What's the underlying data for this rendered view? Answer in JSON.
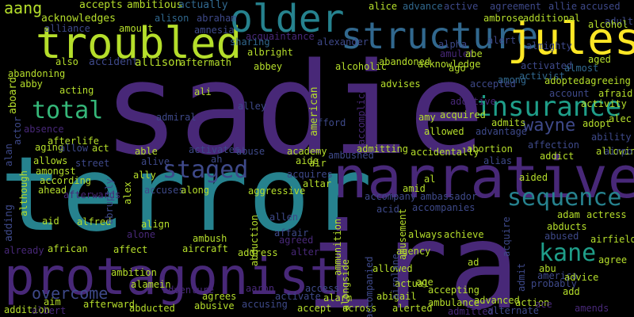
{
  "word_cloud": {
    "background": "#000000",
    "palette": [
      "#440154",
      "#482878",
      "#3e4989",
      "#31688e",
      "#26828e",
      "#1f9e89",
      "#35b779",
      "#6ece58",
      "#b5de2b",
      "#fde725"
    ],
    "words": [
      {
        "text": "sadie",
        "color": "#482878"
      },
      {
        "text": "terror",
        "color": "#26828e"
      },
      {
        "text": "ira",
        "color": "#482878"
      },
      {
        "text": "narrative",
        "color": "#482878"
      },
      {
        "text": "protagonist",
        "color": "#482878"
      },
      {
        "text": "troubled",
        "color": "#b5de2b"
      },
      {
        "text": "older",
        "color": "#26828e"
      },
      {
        "text": "structure",
        "color": "#31688e"
      },
      {
        "text": "jules",
        "color": "#fde725"
      },
      {
        "text": "insurance",
        "color": "#1f9e89"
      },
      {
        "text": "total",
        "color": "#35b779"
      },
      {
        "text": "staged",
        "color": "#3e4989"
      },
      {
        "text": "sequence",
        "color": "#26828e"
      },
      {
        "text": "kane",
        "color": "#1f9e89"
      },
      {
        "text": "wayne",
        "color": "#3e4989"
      },
      {
        "text": "overcome",
        "color": "#3e4989"
      },
      {
        "text": "aang",
        "color": "#b5de2b"
      },
      {
        "text": "accepts",
        "color": "#b5de2b"
      },
      {
        "text": "ambitious",
        "color": "#b5de2b"
      },
      {
        "text": "actually",
        "color": "#31688e"
      },
      {
        "text": "alice",
        "color": "#b5de2b"
      },
      {
        "text": "advance",
        "color": "#31688e"
      },
      {
        "text": "active",
        "color": "#3e4989"
      },
      {
        "text": "agreement",
        "color": "#3e4989"
      },
      {
        "text": "allie",
        "color": "#3e4989"
      },
      {
        "text": "accused",
        "color": "#3e4989"
      },
      {
        "text": "adult",
        "color": "#3e4989"
      },
      {
        "text": "acknowledges",
        "color": "#b5de2b"
      },
      {
        "text": "alison",
        "color": "#31688e"
      },
      {
        "text": "abraham",
        "color": "#3e4989"
      },
      {
        "text": "ambrose",
        "color": "#b5de2b"
      },
      {
        "text": "additional",
        "color": "#b5de2b"
      },
      {
        "text": "alcohol",
        "color": "#b5de2b"
      },
      {
        "text": "alliance",
        "color": "#3e4989"
      },
      {
        "text": "amount",
        "color": "#b5de2b"
      },
      {
        "text": "amnesia",
        "color": "#3e4989"
      },
      {
        "text": "acquaintance",
        "color": "#482878"
      },
      {
        "text": "alexander",
        "color": "#3e4989"
      },
      {
        "text": "alpha",
        "color": "#3e4989"
      },
      {
        "text": "alert",
        "color": "#3e4989"
      },
      {
        "text": "almighty",
        "color": "#3e4989"
      },
      {
        "text": "sharing",
        "color": "#31688e"
      },
      {
        "text": "albright",
        "color": "#b5de2b"
      },
      {
        "text": "amulet",
        "color": "#482878"
      },
      {
        "text": "abe",
        "color": "#b5de2b"
      },
      {
        "text": "aged",
        "color": "#b5de2b"
      },
      {
        "text": "also",
        "color": "#b5de2b"
      },
      {
        "text": "accident",
        "color": "#3e4989"
      },
      {
        "text": "allison",
        "color": "#b5de2b"
      },
      {
        "text": "aftermath",
        "color": "#b5de2b"
      },
      {
        "text": "abandoned",
        "color": "#b5de2b"
      },
      {
        "text": "acknowledge",
        "color": "#b5de2b"
      },
      {
        "text": "activated",
        "color": "#3e4989"
      },
      {
        "text": "almost",
        "color": "#31688e"
      },
      {
        "text": "abandoning",
        "color": "#b5de2b"
      },
      {
        "text": "abbey",
        "color": "#b5de2b"
      },
      {
        "text": "alcoholic",
        "color": "#b5de2b"
      },
      {
        "text": "ago",
        "color": "#b5de2b"
      },
      {
        "text": "activist",
        "color": "#31688e"
      },
      {
        "text": "adopted",
        "color": "#b5de2b"
      },
      {
        "text": "agreeing",
        "color": "#b5de2b"
      },
      {
        "text": "abby",
        "color": "#b5de2b"
      },
      {
        "text": "acting",
        "color": "#b5de2b"
      },
      {
        "text": "ali",
        "color": "#b5de2b"
      },
      {
        "text": "advises",
        "color": "#b5de2b"
      },
      {
        "text": "among",
        "color": "#31688e"
      },
      {
        "text": "accepted",
        "color": "#3e4989"
      },
      {
        "text": "account",
        "color": "#3e4989"
      },
      {
        "text": "afraid",
        "color": "#b5de2b"
      },
      {
        "text": "adoptive",
        "color": "#482878"
      },
      {
        "text": "activity",
        "color": "#b5de2b"
      },
      {
        "text": "acquired",
        "color": "#b5de2b"
      },
      {
        "text": "adopt",
        "color": "#b5de2b"
      },
      {
        "text": "admiral",
        "color": "#3e4989"
      },
      {
        "text": "alley",
        "color": "#3e4989"
      },
      {
        "text": "afford",
        "color": "#3e4989"
      },
      {
        "text": "amy",
        "color": "#b5de2b"
      },
      {
        "text": "admits",
        "color": "#b5de2b"
      },
      {
        "text": "alec",
        "color": "#b5de2b"
      },
      {
        "text": "absence",
        "color": "#482878"
      },
      {
        "text": "advantage",
        "color": "#3e4989"
      },
      {
        "text": "ability",
        "color": "#3e4989"
      },
      {
        "text": "afterlife",
        "color": "#b5de2b"
      },
      {
        "text": "allowed",
        "color": "#b5de2b"
      },
      {
        "text": "affection",
        "color": "#3e4989"
      },
      {
        "text": "allowing",
        "color": "#b5de2b"
      },
      {
        "text": "aging",
        "color": "#b5de2b"
      },
      {
        "text": "allow",
        "color": "#3e4989"
      },
      {
        "text": "act",
        "color": "#b5de2b"
      },
      {
        "text": "able",
        "color": "#b5de2b"
      },
      {
        "text": "activates",
        "color": "#3e4989"
      },
      {
        "text": "abuse",
        "color": "#3e4989"
      },
      {
        "text": "academy",
        "color": "#b5de2b"
      },
      {
        "text": "admitting",
        "color": "#b5de2b"
      },
      {
        "text": "abortion",
        "color": "#b5de2b"
      },
      {
        "text": "airport",
        "color": "#3e4989"
      },
      {
        "text": "allows",
        "color": "#b5de2b"
      },
      {
        "text": "street",
        "color": "#3e4989"
      },
      {
        "text": "alive",
        "color": "#3e4989"
      },
      {
        "text": "ah",
        "color": "#3e4989"
      },
      {
        "text": "aide",
        "color": "#b5de2b"
      },
      {
        "text": "ambushed",
        "color": "#3e4989"
      },
      {
        "text": "air",
        "color": "#b5de2b"
      },
      {
        "text": "accidentally",
        "color": "#b5de2b"
      },
      {
        "text": "addict",
        "color": "#b5de2b"
      },
      {
        "text": "amongst",
        "color": "#b5de2b"
      },
      {
        "text": "ally",
        "color": "#b5de2b"
      },
      {
        "text": "acquires",
        "color": "#3e4989"
      },
      {
        "text": "alias",
        "color": "#3e4989"
      },
      {
        "text": "aided",
        "color": "#b5de2b"
      },
      {
        "text": "according",
        "color": "#b5de2b"
      },
      {
        "text": "accuses",
        "color": "#3e4989"
      },
      {
        "text": "along",
        "color": "#b5de2b"
      },
      {
        "text": "altar",
        "color": "#b5de2b"
      },
      {
        "text": "al",
        "color": "#b5de2b"
      },
      {
        "text": "amid",
        "color": "#b5de2b"
      },
      {
        "text": "ahead",
        "color": "#b5de2b"
      },
      {
        "text": "afterwards",
        "color": "#482878"
      },
      {
        "text": "aggressive",
        "color": "#b5de2b"
      },
      {
        "text": "accompany",
        "color": "#3e4989"
      },
      {
        "text": "ambassador",
        "color": "#3e4989"
      },
      {
        "text": "adam",
        "color": "#b5de2b"
      },
      {
        "text": "actress",
        "color": "#b5de2b"
      },
      {
        "text": "aid",
        "color": "#b5de2b"
      },
      {
        "text": "alfred",
        "color": "#b5de2b"
      },
      {
        "text": "align",
        "color": "#b5de2b"
      },
      {
        "text": "allen",
        "color": "#3e4989"
      },
      {
        "text": "acid",
        "color": "#3e4989"
      },
      {
        "text": "accompanies",
        "color": "#3e4989"
      },
      {
        "text": "abducts",
        "color": "#b5de2b"
      },
      {
        "text": "alone",
        "color": "#482878"
      },
      {
        "text": "ambush",
        "color": "#b5de2b"
      },
      {
        "text": "affair",
        "color": "#3e4989"
      },
      {
        "text": "agreed",
        "color": "#482878"
      },
      {
        "text": "always",
        "color": "#b5de2b"
      },
      {
        "text": "achieve",
        "color": "#b5de2b"
      },
      {
        "text": "abused",
        "color": "#3e4989"
      },
      {
        "text": "airfield",
        "color": "#b5de2b"
      },
      {
        "text": "african",
        "color": "#b5de2b"
      },
      {
        "text": "affect",
        "color": "#b5de2b"
      },
      {
        "text": "aircraft",
        "color": "#b5de2b"
      },
      {
        "text": "address",
        "color": "#b5de2b"
      },
      {
        "text": "alter",
        "color": "#482878"
      },
      {
        "text": "agency",
        "color": "#b5de2b"
      },
      {
        "text": "abu",
        "color": "#b5de2b"
      },
      {
        "text": "already",
        "color": "#482878"
      },
      {
        "text": "agree",
        "color": "#b5de2b"
      },
      {
        "text": "ad",
        "color": "#b5de2b"
      },
      {
        "text": "allowed",
        "color": "#b5de2b"
      },
      {
        "text": "america",
        "color": "#3e4989"
      },
      {
        "text": "advice",
        "color": "#b5de2b"
      },
      {
        "text": "probably",
        "color": "#3e4989"
      },
      {
        "text": "ambition",
        "color": "#b5de2b"
      },
      {
        "text": "alamein",
        "color": "#b5de2b"
      },
      {
        "text": "aaron",
        "color": "#482878"
      },
      {
        "text": "access",
        "color": "#3e4989"
      },
      {
        "text": "actual",
        "color": "#b5de2b"
      },
      {
        "text": "age",
        "color": "#b5de2b"
      },
      {
        "text": "add",
        "color": "#b5de2b"
      },
      {
        "text": "addition",
        "color": "#b5de2b"
      },
      {
        "text": "aim",
        "color": "#b5de2b"
      },
      {
        "text": "adventure",
        "color": "#482878"
      },
      {
        "text": "agrees",
        "color": "#b5de2b"
      },
      {
        "text": "activate",
        "color": "#3e4989"
      },
      {
        "text": "alarm",
        "color": "#b5de2b"
      },
      {
        "text": "accepting",
        "color": "#b5de2b"
      },
      {
        "text": "advanced",
        "color": "#b5de2b"
      },
      {
        "text": "action",
        "color": "#b5de2b"
      },
      {
        "text": "ace",
        "color": "#482878"
      },
      {
        "text": "albert",
        "color": "#482878"
      },
      {
        "text": "afterward",
        "color": "#b5de2b"
      },
      {
        "text": "abducted",
        "color": "#b5de2b"
      },
      {
        "text": "abusive",
        "color": "#b5de2b"
      },
      {
        "text": "accusing",
        "color": "#3e4989"
      },
      {
        "text": "accept",
        "color": "#b5de2b"
      },
      {
        "text": "across",
        "color": "#b5de2b"
      },
      {
        "text": "alerted",
        "color": "#b5de2b"
      },
      {
        "text": "abigail",
        "color": "#b5de2b"
      },
      {
        "text": "ambulance",
        "color": "#b5de2b"
      },
      {
        "text": "admitted",
        "color": "#482878"
      },
      {
        "text": "alternate",
        "color": "#3e4989"
      },
      {
        "text": "amends",
        "color": "#482878"
      },
      {
        "text": "aboard",
        "color": "#b5de2b"
      },
      {
        "text": "actor",
        "color": "#3e4989"
      },
      {
        "text": "alan",
        "color": "#3e4989"
      },
      {
        "text": "adding",
        "color": "#3e4989"
      },
      {
        "text": "although",
        "color": "#b5de2b"
      },
      {
        "text": "abruptly",
        "color": "#3e4989"
      },
      {
        "text": "alex",
        "color": "#b5de2b"
      },
      {
        "text": "abduction",
        "color": "#b5de2b"
      },
      {
        "text": "american",
        "color": "#b5de2b"
      },
      {
        "text": "accomplice",
        "color": "#482878"
      },
      {
        "text": "amusement",
        "color": "#b5de2b"
      },
      {
        "text": "ammunition",
        "color": "#b5de2b"
      },
      {
        "text": "alongside",
        "color": "#b5de2b"
      },
      {
        "text": "accompanied",
        "color": "#3e4989"
      },
      {
        "text": "airplane",
        "color": "#3e4989"
      },
      {
        "text": "acquire",
        "color": "#3e4989"
      },
      {
        "text": "admit",
        "color": "#3e4989"
      },
      {
        "text": "agent",
        "color": "#b5de2b"
      }
    ]
  }
}
